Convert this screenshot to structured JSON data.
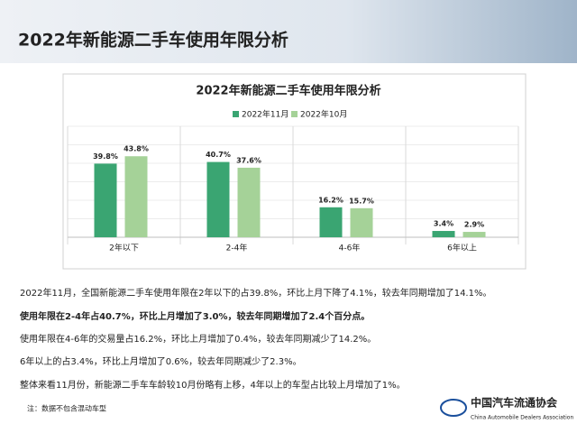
{
  "header": {
    "title": "2022年新能源二手车使用年限分析"
  },
  "chart_data": {
    "type": "bar",
    "title": "2022年新能源二手车使用年限分析",
    "categories": [
      "2年以下",
      "2-4年",
      "4-6年",
      "6年以上"
    ],
    "series": [
      {
        "name": "2022年11月",
        "color": "#3aa572",
        "values": [
          39.8,
          40.7,
          16.2,
          3.4
        ],
        "value_labels": [
          "39.8%",
          "40.7%",
          "16.2%",
          "3.4%"
        ]
      },
      {
        "name": "2022年10月",
        "color": "#a5d298",
        "values": [
          43.8,
          37.6,
          15.7,
          2.9
        ],
        "value_labels": [
          "43.8%",
          "37.6%",
          "15.7%",
          "2.9%"
        ]
      }
    ],
    "ylim": [
      0,
      60
    ],
    "legend": "top"
  },
  "paragraphs": [
    "2022年11月，全国新能源二手车使用年限在2年以下的占39.8%，环比上月下降了4.1%，较去年同期增加了14.1%。",
    "使用年限在2-4年占40.7%，环比上月增加了3.0%，较去年同期增加了2.4个百分点。",
    "使用年限在4-6年的交易量占16.2%，环比上月增加了0.4%，较去年同期减少了14.2%。",
    "6年以上的占3.4%，环比上月增加了0.6%，较去年同期减少了2.3%。",
    "整体来看11月份，新能源二手车车龄较10月份略有上移，4年以上的车型占比较上月增加了1%。"
  ],
  "note": "注：数据不包含混动车型",
  "logo": {
    "name": "中国汽车流通协会",
    "english": "China Automobile Dealers Association"
  }
}
